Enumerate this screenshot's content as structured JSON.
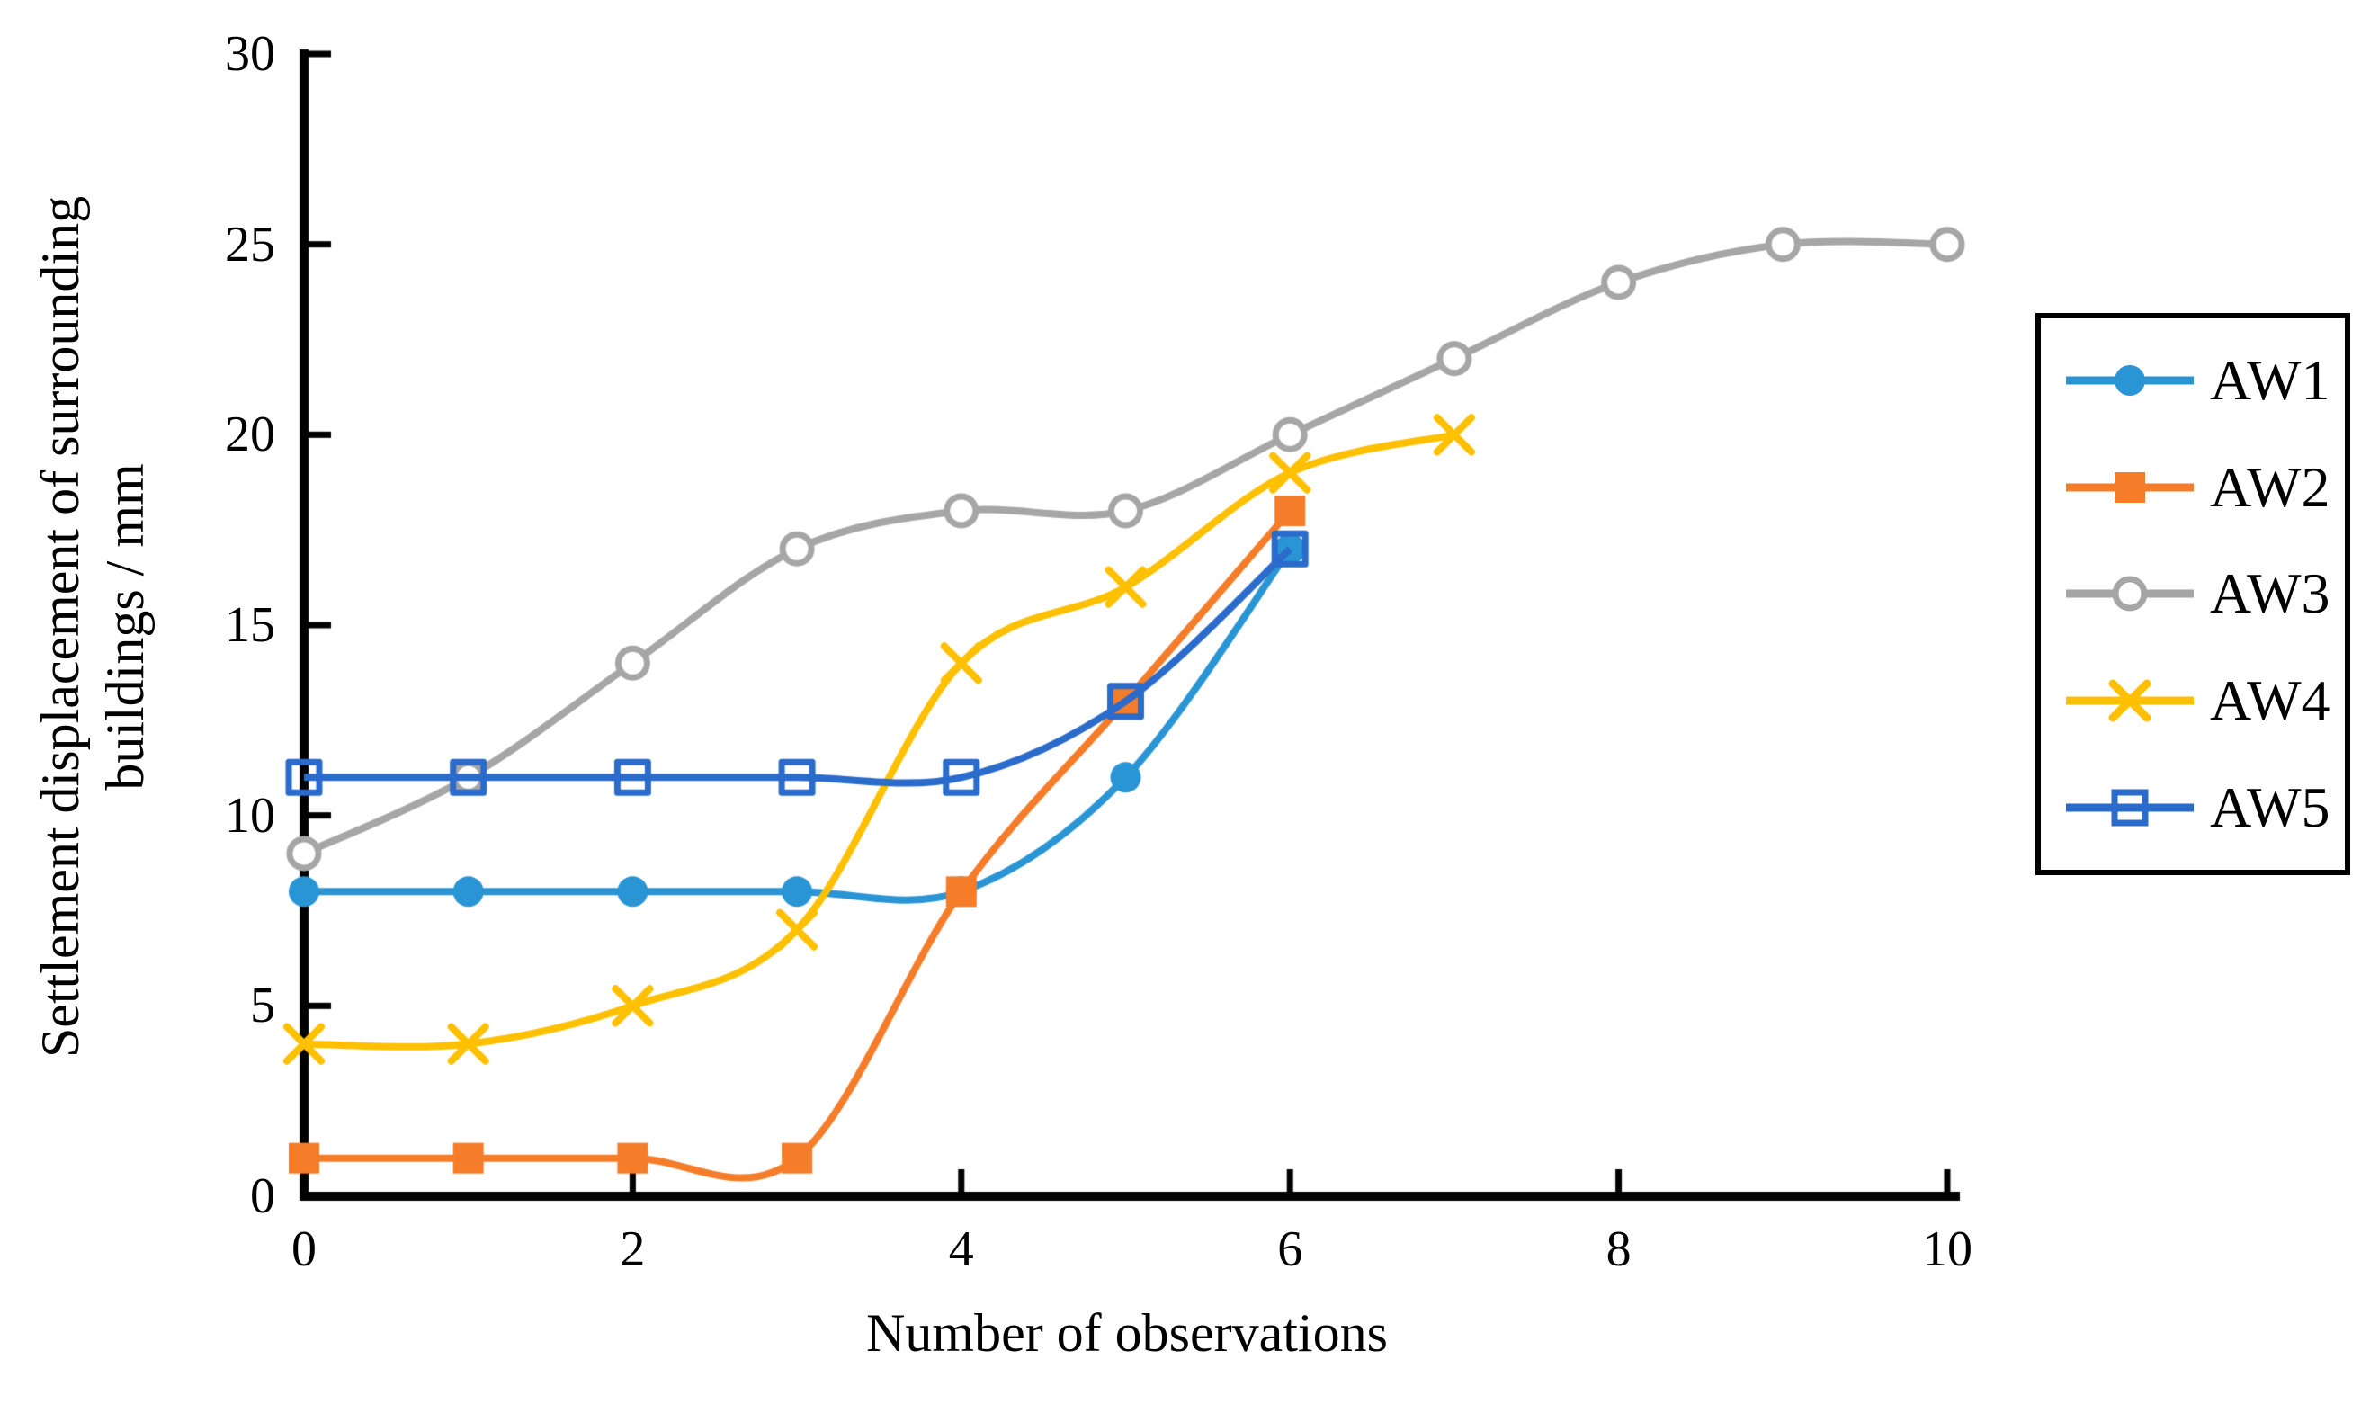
{
  "chart_data": {
    "type": "line",
    "title": "",
    "xlabel": "Number of observations",
    "ylabel_line1": "Settlement displacement of surrounding",
    "ylabel_line2": "buildings / mm",
    "xlim": [
      0,
      10
    ],
    "ylim": [
      0,
      30
    ],
    "x_ticks": [
      0,
      2,
      4,
      6,
      8,
      10
    ],
    "y_ticks": [
      0,
      5,
      10,
      15,
      20,
      25,
      30
    ],
    "grid": false,
    "tick_direction": "in",
    "legend_position": "right-outside",
    "axis_color": "#000000",
    "background_color": "#ffffff",
    "line_style": "smooth",
    "series": [
      {
        "name": "AW1",
        "color": "#2A95D5",
        "marker": "circle",
        "x": [
          0,
          1,
          2,
          3,
          4,
          5,
          6
        ],
        "values": [
          8,
          8,
          8,
          8,
          8,
          11,
          17
        ]
      },
      {
        "name": "AW2",
        "color": "#F57D2A",
        "marker": "square",
        "x": [
          0,
          1,
          2,
          3,
          4,
          5,
          6
        ],
        "values": [
          1,
          1,
          1,
          1,
          8,
          13,
          18
        ]
      },
      {
        "name": "AW3",
        "color": "#A6A6A6",
        "marker": "circle-open",
        "x": [
          0,
          1,
          2,
          3,
          4,
          5,
          6,
          7,
          8,
          9,
          10
        ],
        "values": [
          9,
          11,
          14,
          17,
          18,
          18,
          20,
          22,
          24,
          25,
          25
        ]
      },
      {
        "name": "AW4",
        "color": "#FFC000",
        "marker": "x",
        "x": [
          0,
          1,
          2,
          3,
          4,
          5,
          6,
          7
        ],
        "values": [
          4,
          4,
          5,
          7,
          14,
          16,
          19,
          20
        ]
      },
      {
        "name": "AW5",
        "color": "#2A6BCB",
        "marker": "square-open",
        "x": [
          0,
          1,
          2,
          3,
          4,
          5,
          6
        ],
        "values": [
          11,
          11,
          11,
          11,
          11,
          13,
          17
        ]
      }
    ]
  }
}
